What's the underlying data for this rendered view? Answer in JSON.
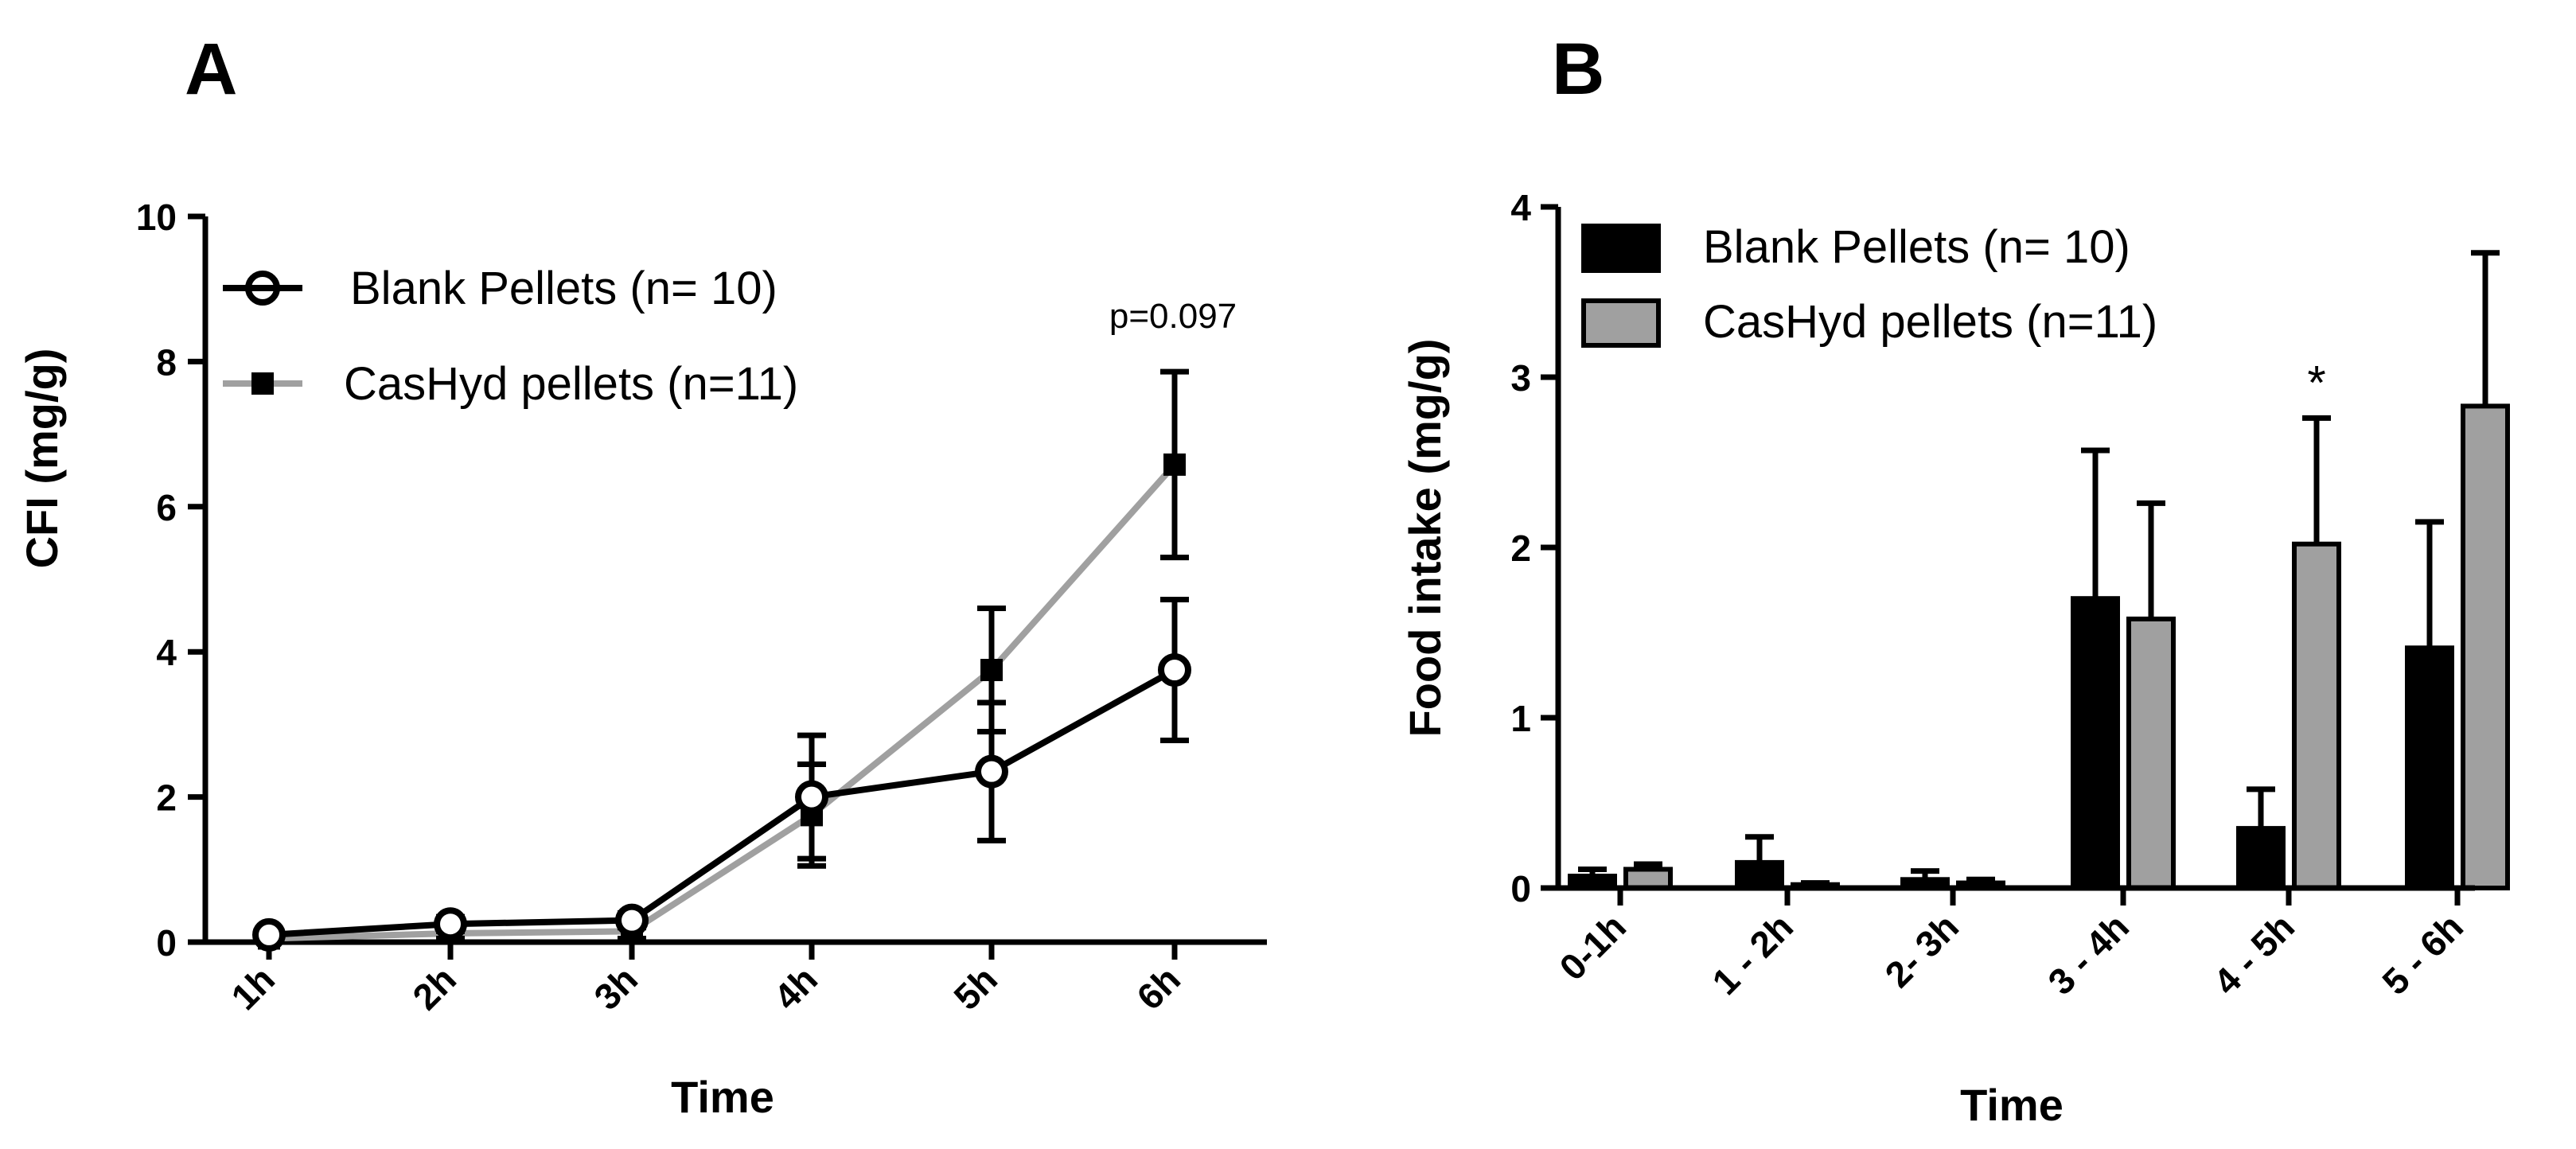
{
  "chart_data": [
    {
      "panel": "A",
      "type": "line",
      "xlabel": "Time",
      "ylabel": "CFI (mg/g)",
      "categories": [
        "1h",
        "2h",
        "3h",
        "4h",
        "5h",
        "6h"
      ],
      "ylim": [
        0,
        10
      ],
      "yticks": [
        "0",
        "2",
        "4",
        "6",
        "8",
        "10"
      ],
      "grid": false,
      "legend_position": "top-left",
      "series": [
        {
          "name": "Blank Pellets (n= 10)",
          "marker": "circle",
          "color": "#000000",
          "values": [
            0.1,
            0.25,
            0.3,
            2.0,
            2.35,
            3.75
          ],
          "errors": [
            0.05,
            0.1,
            0.1,
            0.85,
            0.95,
            0.97
          ]
        },
        {
          "name": "CasHyd pellets (n=11)",
          "marker": "square",
          "color": "#a0a0a0",
          "values": [
            0.05,
            0.12,
            0.15,
            1.75,
            3.75,
            6.58
          ],
          "errors": [
            0.05,
            0.07,
            0.1,
            0.7,
            0.85,
            1.28
          ]
        }
      ],
      "annotations": [
        {
          "text": "p=0.097",
          "category": "6h"
        }
      ]
    },
    {
      "panel": "B",
      "type": "bar",
      "xlabel": "Time",
      "ylabel": "Food intake (mg/g)",
      "categories": [
        "0-1h",
        "1 - 2h",
        "2- 3h",
        "3 - 4h",
        "4 - 5h",
        "5 - 6h"
      ],
      "ylim": [
        0,
        4
      ],
      "yticks": [
        "0",
        "1",
        "2",
        "3",
        "4"
      ],
      "grid": false,
      "legend_position": "top-left",
      "series": [
        {
          "name": "Blank Pellets (n= 10)",
          "color": "#000000",
          "values": [
            0.07,
            0.15,
            0.05,
            1.7,
            0.35,
            1.41
          ],
          "errors": [
            0.04,
            0.15,
            0.05,
            0.87,
            0.23,
            0.74
          ]
        },
        {
          "name": "CasHyd pellets (n=11)",
          "color": "#a0a0a0",
          "values": [
            0.11,
            0.02,
            0.03,
            1.58,
            2.02,
            2.83
          ],
          "errors": [
            0.03,
            0.01,
            0.02,
            0.68,
            0.74,
            0.9
          ]
        }
      ],
      "annotations": [
        {
          "text": "*",
          "category": "4 - 5h"
        }
      ]
    }
  ]
}
